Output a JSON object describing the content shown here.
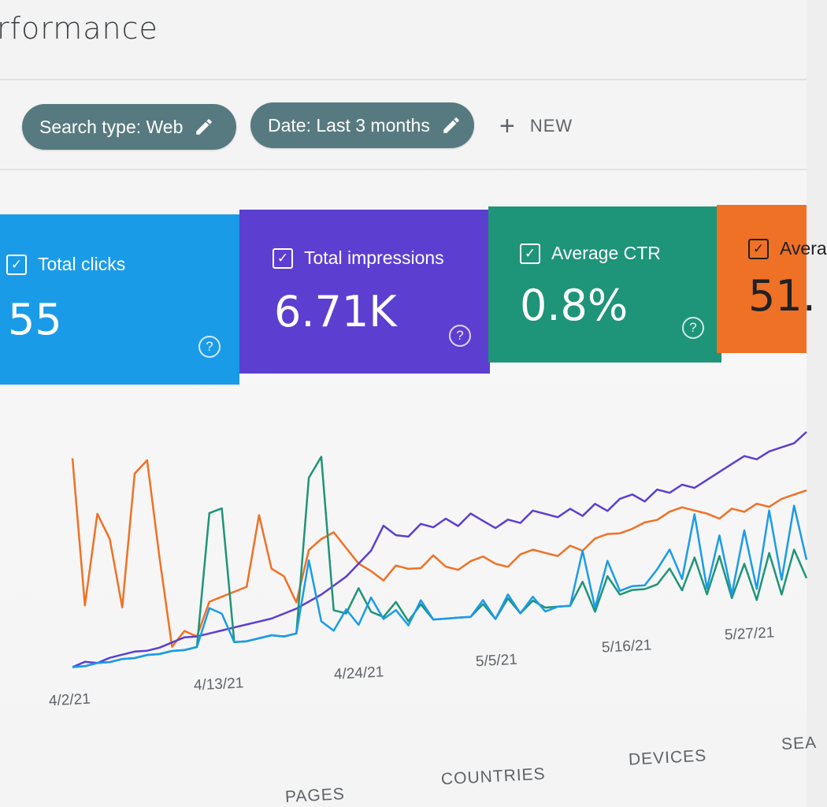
{
  "header": {
    "title": "rformance"
  },
  "filters": {
    "chips": [
      {
        "label": "Search type: Web"
      },
      {
        "label": "Date: Last 3 months"
      }
    ],
    "new_label": "NEW"
  },
  "metrics": [
    {
      "label": "Total clicks",
      "value": "55",
      "color": "#1a9be8"
    },
    {
      "label": "Total impressions",
      "value": "6.71K",
      "color": "#5c3ed1"
    },
    {
      "label": "Average CTR",
      "value": "0.8%",
      "color": "#1e9478"
    },
    {
      "label": "Avera",
      "value": "51.",
      "color": "#ef7125"
    }
  ],
  "chart_data": {
    "type": "line",
    "x_ticks": [
      "4/2/21",
      "4/13/21",
      "4/24/21",
      "5/5/21",
      "5/16/21",
      "5/27/21"
    ],
    "series": [
      {
        "color": "#ef7125",
        "values": [
          98,
          30,
          72,
          60,
          28,
          90,
          96,
          50,
          8,
          15,
          12,
          28,
          30,
          32,
          34,
          68,
          42,
          38,
          25,
          50,
          55,
          58,
          50,
          42,
          38,
          33,
          40,
          38,
          38,
          44,
          38,
          36,
          40,
          42,
          38,
          36,
          42,
          44,
          42,
          40,
          45,
          42,
          48,
          50,
          50,
          52,
          55,
          56,
          60,
          62,
          60,
          58,
          55,
          60,
          58,
          62,
          60,
          64,
          66,
          68
        ]
      },
      {
        "color": "#5c3ed1",
        "values": [
          2,
          4,
          3,
          5,
          6,
          7,
          7,
          8,
          10,
          12,
          12,
          13,
          14,
          15,
          16,
          17,
          18,
          20,
          22,
          25,
          28,
          32,
          36,
          42,
          48,
          60,
          55,
          54,
          60,
          58,
          62,
          58,
          64,
          60,
          56,
          60,
          58,
          64,
          62,
          60,
          64,
          60,
          66,
          62,
          68,
          70,
          66,
          72,
          70,
          74,
          72,
          76,
          80,
          84,
          88,
          86,
          90,
          92,
          94,
          100
        ]
      },
      {
        "color": "#1e9478",
        "values": [
          2,
          2,
          3,
          3,
          4,
          4,
          5,
          5,
          6,
          6,
          7,
          70,
          72,
          8,
          8,
          9,
          10,
          9,
          10,
          85,
          95,
          20,
          18,
          30,
          18,
          15,
          22,
          12,
          20,
          12,
          12,
          12,
          12,
          18,
          10,
          20,
          12,
          18,
          14,
          14,
          14,
          26,
          10,
          28,
          18,
          20,
          20,
          22,
          30,
          18,
          35,
          15,
          35,
          12,
          30,
          10,
          35,
          12,
          36,
          20
        ]
      },
      {
        "color": "#1a9be8",
        "values": [
          2,
          2,
          3,
          3,
          4,
          4,
          5,
          5,
          6,
          6,
          7,
          25,
          22,
          8,
          8,
          9,
          10,
          9,
          10,
          45,
          15,
          10,
          20,
          12,
          25,
          14,
          18,
          10,
          22,
          12,
          12,
          12,
          12,
          20,
          10,
          22,
          12,
          20,
          12,
          14,
          14,
          42,
          12,
          36,
          20,
          22,
          22,
          30,
          40,
          24,
          58,
          18,
          46,
          14,
          48,
          16,
          58,
          20,
          60,
          30
        ]
      }
    ]
  },
  "tabs": [
    "PAGES",
    "COUNTRIES",
    "DEVICES",
    "SEA"
  ]
}
